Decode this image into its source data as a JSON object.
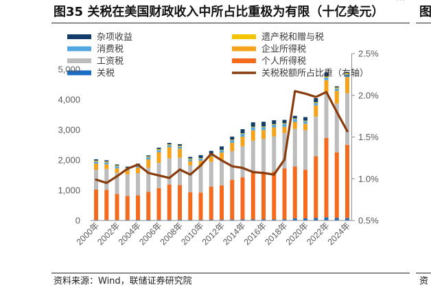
{
  "figure": {
    "source": "资料来源：Wind，联储证券研究院"
  },
  "adjacent_figure": {
    "title_fragment": "图",
    "source_fragment": "资",
    "top_ellipsis": "···"
  },
  "chart_data": {
    "type": "bar",
    "stacked": true,
    "title": "图35 关税在美国财政收入中所占比重极为有限（十亿美元）",
    "x": [
      2000,
      2001,
      2002,
      2003,
      2004,
      2005,
      2006,
      2007,
      2008,
      2009,
      2010,
      2011,
      2012,
      2013,
      2014,
      2015,
      2016,
      2017,
      2018,
      2019,
      2020,
      2021,
      2022,
      2023,
      2024
    ],
    "x_tick_labels": [
      "2000年",
      "",
      "2002年",
      "",
      "2004年",
      "",
      "2006年",
      "",
      "2008年",
      "",
      "2010年",
      "",
      "2012年",
      "",
      "2014年",
      "",
      "2016年",
      "",
      "2018年",
      "",
      "2020年",
      "",
      "2022年",
      "",
      "2024年"
    ],
    "y_left": {
      "range": [
        0,
        5000
      ],
      "ticks": [
        0,
        1000,
        2000,
        3000,
        4000,
        5000
      ],
      "tick_labels": [
        "0",
        "1,000",
        "2,000",
        "3,000",
        "4,000",
        "5,000"
      ]
    },
    "y_right": {
      "range": [
        0.5,
        2.5
      ],
      "ticks": [
        0.5,
        1.0,
        1.5,
        2.0,
        2.5
      ],
      "tick_labels": [
        "0.5%",
        "1.0%",
        "1.5%",
        "2.0%",
        "2.5%"
      ]
    },
    "grid": false,
    "legend": {
      "placement": "top-left",
      "columns": 2
    },
    "series": [
      {
        "name": "杂项收益",
        "type": "bar",
        "axis": "left",
        "color": "#123c69",
        "values": [
          43,
          39,
          33,
          33,
          33,
          34,
          45,
          46,
          50,
          54,
          97,
          104,
          108,
          103,
          136,
          146,
          155,
          128,
          111,
          85,
          116,
          134,
          135,
          40,
          44
        ]
      },
      {
        "name": "遗产税和赠与税",
        "type": "bar",
        "axis": "left",
        "color": "#f5c400",
        "values": [
          29,
          28,
          27,
          22,
          25,
          25,
          28,
          26,
          29,
          23,
          19,
          7,
          14,
          19,
          19,
          19,
          21,
          23,
          23,
          17,
          18,
          27,
          33,
          34,
          32
        ]
      },
      {
        "name": "消费税",
        "type": "bar",
        "axis": "left",
        "color": "#52a7e0",
        "values": [
          69,
          66,
          67,
          68,
          70,
          73,
          74,
          65,
          67,
          62,
          67,
          72,
          79,
          84,
          93,
          98,
          95,
          84,
          95,
          99,
          87,
          75,
          88,
          76,
          101
        ]
      },
      {
        "name": "企业所得税",
        "type": "bar",
        "axis": "left",
        "color": "#f6a31c",
        "values": [
          207,
          151,
          148,
          132,
          189,
          278,
          354,
          370,
          304,
          138,
          191,
          181,
          242,
          274,
          321,
          344,
          300,
          297,
          205,
          230,
          212,
          372,
          425,
          420,
          530
        ]
      },
      {
        "name": "工资税",
        "type": "bar",
        "axis": "left",
        "color": "#bcbcbc",
        "values": [
          653,
          694,
          701,
          713,
          733,
          794,
          838,
          870,
          900,
          891,
          865,
          819,
          845,
          948,
          1024,
          1065,
          1115,
          1162,
          1171,
          1243,
          1310,
          1314,
          1484,
          1614,
          1709
        ]
      },
      {
        "name": "个人所得税",
        "type": "bar",
        "axis": "left",
        "color": "#f46b1e",
        "values": [
          1004,
          994,
          858,
          794,
          809,
          927,
          1044,
          1163,
          1146,
          915,
          899,
          1091,
          1132,
          1316,
          1394,
          1541,
          1546,
          1587,
          1684,
          1718,
          1609,
          2044,
          2632,
          2176,
          2426
        ]
      },
      {
        "name": "关税",
        "type": "bar",
        "axis": "left",
        "color": "#1a6dc4",
        "values": [
          20,
          19,
          19,
          20,
          22,
          23,
          25,
          26,
          28,
          22,
          25,
          30,
          30,
          32,
          34,
          35,
          35,
          35,
          41,
          71,
          69,
          80,
          100,
          80,
          77
        ]
      },
      {
        "name": "关税税额所占比重（右轴）",
        "type": "line",
        "axis": "right",
        "color": "#8a3b0c",
        "values": [
          0.99,
          0.95,
          1.03,
          1.12,
          1.17,
          1.07,
          1.04,
          1.01,
          1.11,
          1.05,
          1.16,
          1.3,
          1.22,
          1.15,
          1.13,
          1.08,
          1.07,
          1.05,
          1.23,
          2.05,
          2.02,
          1.98,
          2.04,
          1.8,
          1.57
        ]
      }
    ]
  }
}
